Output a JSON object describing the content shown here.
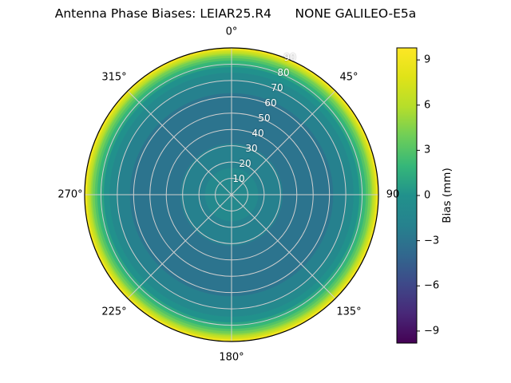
{
  "chart_data": {
    "type": "heatmap",
    "projection": "polar",
    "title": "Antenna Phase Biases: LEIAR25.R4      NONE GALILEO-E5a",
    "theta_zero": "top",
    "theta_direction": "clockwise",
    "theta_labels": [
      "0°",
      "45°",
      "90",
      "135°",
      "180°",
      "225°",
      "270°",
      "315°"
    ],
    "radial_axis": {
      "label_angle_deg": 22.5,
      "max_zenith_deg": 90,
      "tick_values": [
        10,
        20,
        30,
        40,
        50,
        60,
        70,
        80,
        90
      ],
      "tick_labels": [
        "10",
        "20",
        "30",
        "40",
        "50",
        "60",
        "70",
        "80",
        "90"
      ]
    },
    "grid": true,
    "grid_color": "#cfcfcf",
    "colormap": {
      "name": "viridis",
      "anchors": [
        {
          "t": 0.0,
          "color": "#440154"
        },
        {
          "t": 0.1,
          "color": "#482878"
        },
        {
          "t": 0.2,
          "color": "#3e4989"
        },
        {
          "t": 0.3,
          "color": "#31688e"
        },
        {
          "t": 0.4,
          "color": "#26828e"
        },
        {
          "t": 0.5,
          "color": "#21918c"
        },
        {
          "t": 0.6,
          "color": "#35b779"
        },
        {
          "t": 0.7,
          "color": "#6ece58"
        },
        {
          "t": 0.8,
          "color": "#b5de2b"
        },
        {
          "t": 0.9,
          "color": "#dfe318"
        },
        {
          "t": 1.0,
          "color": "#fde725"
        }
      ]
    },
    "colorbar": {
      "label": "Bias (mm)",
      "vmin": -9.8,
      "vmax": 9.8,
      "ticks": [
        9,
        6,
        3,
        0,
        -3,
        -6,
        -9
      ],
      "tick_labels": [
        "9",
        "6",
        "3",
        "0",
        "−3",
        "−6",
        "−9"
      ]
    },
    "level_step_mm": 1,
    "radial_profile": {
      "zenith_deg": [
        0,
        8,
        15,
        25,
        35,
        50,
        60,
        68,
        73,
        76,
        79,
        82,
        84,
        86,
        88,
        89,
        90
      ],
      "bias_mm": [
        -0.6,
        -0.8,
        -1.4,
        -2.2,
        -2.7,
        -2.9,
        -2.7,
        -2.0,
        -1.0,
        -0.2,
        0.8,
        2.2,
        3.5,
        5.0,
        7.0,
        8.5,
        9.6
      ]
    }
  }
}
